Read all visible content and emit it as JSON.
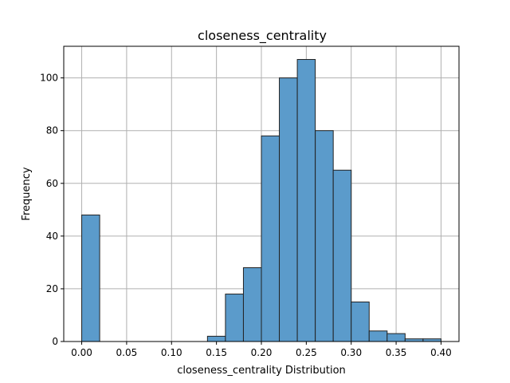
{
  "chart_data": {
    "type": "bar",
    "title": "closeness_centrality",
    "xlabel": "closeness_centrality Distribution",
    "ylabel": "Frequency",
    "xlim": [
      -0.02,
      0.42
    ],
    "ylim": [
      0,
      112
    ],
    "grid": true,
    "bin_width": 0.02,
    "bins": [
      {
        "x0": 0.0,
        "count": 48
      },
      {
        "x0": 0.02,
        "count": 0
      },
      {
        "x0": 0.04,
        "count": 0
      },
      {
        "x0": 0.06,
        "count": 0
      },
      {
        "x0": 0.08,
        "count": 0
      },
      {
        "x0": 0.1,
        "count": 0
      },
      {
        "x0": 0.12,
        "count": 0
      },
      {
        "x0": 0.14,
        "count": 2
      },
      {
        "x0": 0.16,
        "count": 18
      },
      {
        "x0": 0.18,
        "count": 28
      },
      {
        "x0": 0.2,
        "count": 78
      },
      {
        "x0": 0.22,
        "count": 100
      },
      {
        "x0": 0.24,
        "count": 107
      },
      {
        "x0": 0.26,
        "count": 80
      },
      {
        "x0": 0.28,
        "count": 65
      },
      {
        "x0": 0.3,
        "count": 15
      },
      {
        "x0": 0.32,
        "count": 4
      },
      {
        "x0": 0.34,
        "count": 3
      },
      {
        "x0": 0.36,
        "count": 1
      },
      {
        "x0": 0.38,
        "count": 1
      }
    ],
    "x_ticks": [
      {
        "value": 0.0,
        "label": "0.00"
      },
      {
        "value": 0.05,
        "label": "0.05"
      },
      {
        "value": 0.1,
        "label": "0.10"
      },
      {
        "value": 0.15,
        "label": "0.15"
      },
      {
        "value": 0.2,
        "label": "0.20"
      },
      {
        "value": 0.25,
        "label": "0.25"
      },
      {
        "value": 0.3,
        "label": "0.30"
      },
      {
        "value": 0.35,
        "label": "0.35"
      },
      {
        "value": 0.4,
        "label": "0.40"
      }
    ],
    "y_ticks": [
      {
        "value": 0,
        "label": "0"
      },
      {
        "value": 20,
        "label": "20"
      },
      {
        "value": 40,
        "label": "40"
      },
      {
        "value": 60,
        "label": "60"
      },
      {
        "value": 80,
        "label": "80"
      },
      {
        "value": 100,
        "label": "100"
      }
    ],
    "colors": {
      "bar_fill": "#5b9bcb",
      "bar_edge": "#222222",
      "grid": "#b0b0b0",
      "axis": "#000000"
    }
  }
}
